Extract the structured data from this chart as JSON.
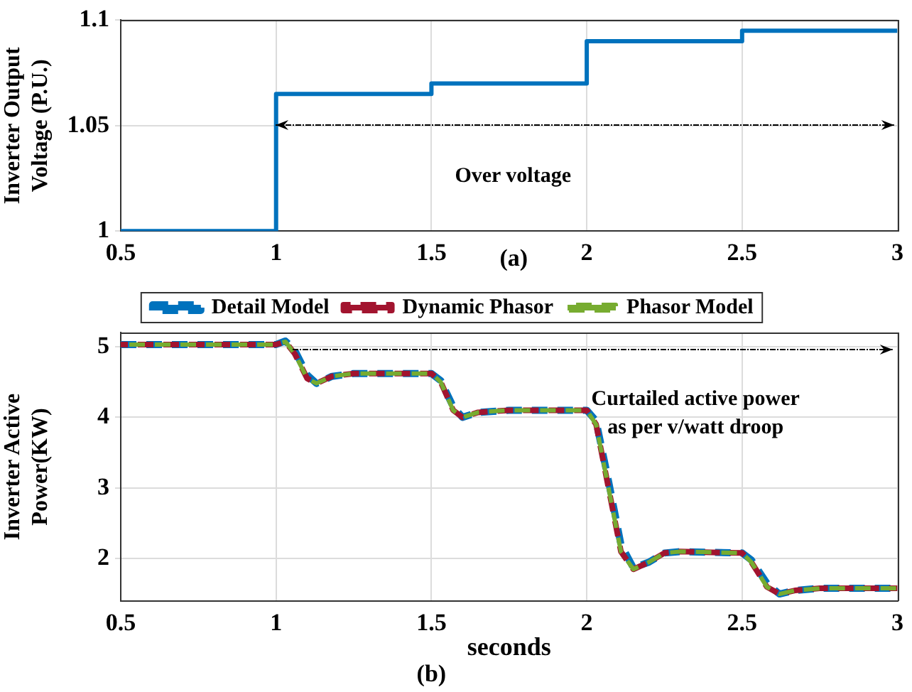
{
  "chart_data": [
    {
      "type": "step",
      "ylabel": "Inverter Output Voltage (P.U.)",
      "x": [
        0.5,
        1,
        1.5,
        2,
        2.5,
        3
      ],
      "xlim": [
        0.5,
        3
      ],
      "xticks": [
        0.5,
        1,
        1.5,
        2,
        2.5,
        3
      ],
      "ylim": [
        1,
        1.1
      ],
      "yticks": [
        1,
        1.05,
        1.1
      ],
      "grid": true,
      "legend": false,
      "annotations": [
        "Over voltage",
        "(a)"
      ],
      "series": [
        {
          "color": "#0072bd",
          "values": [
            1,
            1.065,
            1.07,
            1.09,
            1.095,
            1.095
          ]
        }
      ]
    },
    {
      "type": "line",
      "xlabel": "seconds",
      "ylabel": "Inverter Active Power(KW)",
      "xlim": [
        0.5,
        3
      ],
      "xticks": [
        0.5,
        1,
        1.5,
        2,
        2.5,
        3
      ],
      "ylim": [
        1.4,
        5.2
      ],
      "yticks": [
        2,
        3,
        4,
        5
      ],
      "grid": true,
      "legend": "top",
      "line_style": "dashed",
      "marker": "none",
      "annotations": [
        "Curtailed active power as per v/watt droop",
        "(b)"
      ],
      "x": [
        0.5,
        1,
        1.03,
        1.06,
        1.1,
        1.13,
        1.18,
        1.25,
        1.5,
        1.53,
        1.57,
        1.6,
        1.65,
        1.75,
        2,
        2.03,
        2.07,
        2.11,
        2.15,
        2.2,
        2.25,
        2.3,
        2.5,
        2.53,
        2.58,
        2.62,
        2.67,
        2.75,
        3
      ],
      "series": [
        {
          "name": "Detail Model",
          "color": "#0072bd",
          "values": [
            5.03,
            5.03,
            5.08,
            4.95,
            4.6,
            4.48,
            4.58,
            4.62,
            4.62,
            4.52,
            4.15,
            4.0,
            4.07,
            4.1,
            4.1,
            3.95,
            3.1,
            2.2,
            1.87,
            1.95,
            2.08,
            2.1,
            2.08,
            1.98,
            1.65,
            1.5,
            1.55,
            1.58,
            1.58
          ]
        },
        {
          "name": "Dynamic Phasor",
          "color": "#a2142f",
          "values": [
            5.03,
            5.03,
            5.07,
            4.9,
            4.55,
            4.48,
            4.58,
            4.62,
            4.62,
            4.5,
            4.1,
            4.0,
            4.07,
            4.1,
            4.1,
            3.9,
            3.0,
            2.1,
            1.85,
            1.95,
            2.08,
            2.1,
            2.08,
            1.95,
            1.6,
            1.5,
            1.55,
            1.58,
            1.58
          ]
        },
        {
          "name": "Phasor Model",
          "color": "#77ac30",
          "values": [
            5.03,
            5.03,
            5.07,
            4.9,
            4.55,
            4.48,
            4.58,
            4.62,
            4.62,
            4.5,
            4.1,
            4.0,
            4.07,
            4.1,
            4.1,
            3.9,
            3.0,
            2.1,
            1.85,
            1.95,
            2.08,
            2.1,
            2.08,
            1.95,
            1.6,
            1.5,
            1.55,
            1.58,
            1.58
          ]
        }
      ]
    }
  ]
}
